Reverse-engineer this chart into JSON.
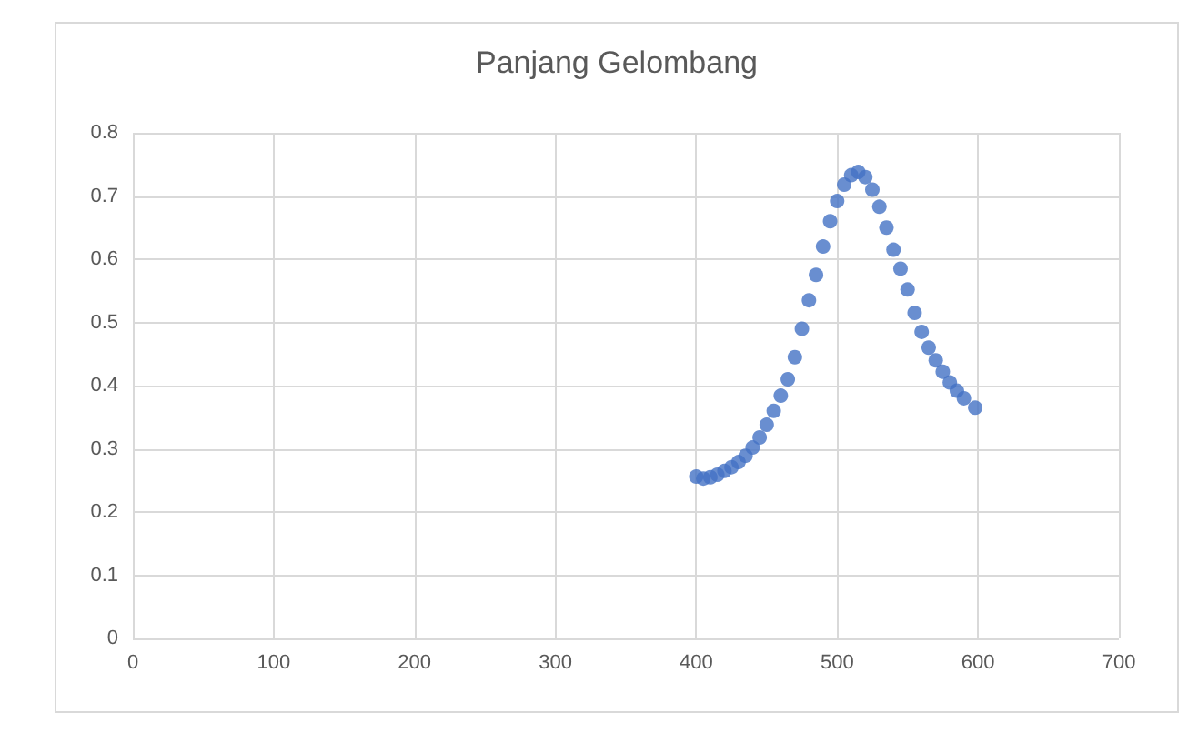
{
  "chart_data": {
    "type": "scatter",
    "title": "Panjang Gelombang",
    "x": [
      400,
      405,
      410,
      415,
      420,
      425,
      430,
      435,
      440,
      445,
      450,
      455,
      460,
      465,
      470,
      475,
      480,
      485,
      490,
      495,
      500,
      505,
      510,
      515,
      520,
      525,
      530,
      535,
      540,
      545,
      550,
      555,
      560,
      565,
      570,
      575,
      580,
      585,
      590,
      598
    ],
    "series": [
      {
        "color": "#4472c4",
        "values": [
          0.256,
          0.253,
          0.255,
          0.259,
          0.265,
          0.271,
          0.279,
          0.289,
          0.302,
          0.318,
          0.338,
          0.36,
          0.384,
          0.41,
          0.445,
          0.49,
          0.535,
          0.575,
          0.62,
          0.66,
          0.692,
          0.718,
          0.733,
          0.738,
          0.73,
          0.71,
          0.683,
          0.65,
          0.615,
          0.585,
          0.552,
          0.515,
          0.485,
          0.46,
          0.44,
          0.422,
          0.405,
          0.392,
          0.38,
          0.365
        ]
      }
    ],
    "xlim": [
      0,
      700
    ],
    "xticks": [
      0,
      100,
      200,
      300,
      400,
      500,
      600,
      700
    ],
    "ylim": [
      0,
      0.8
    ],
    "yticks": [
      0,
      0.1,
      0.2,
      0.3,
      0.4,
      0.5,
      0.6,
      0.7,
      0.8
    ],
    "grid": true,
    "marker": "circle"
  }
}
